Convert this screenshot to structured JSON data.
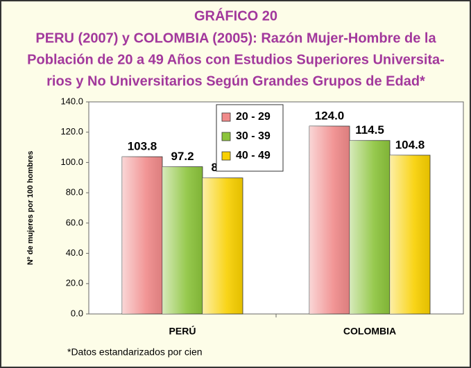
{
  "chart_data": {
    "type": "bar",
    "title": "GRÁFICO 20",
    "subtitle": [
      "PERU (2007) y COLOMBIA (2005): Razón Mujer-Hombre de la",
      "Población de 20 a 49 Años con Estudios Superiores Universita-",
      "rios y No Universitarios Según Grandes Grupos de Edad*"
    ],
    "y_label": "Nº de mujeres por 100 hombres",
    "footnote": "*Datos estandarizados por cien",
    "categories": [
      "PERÚ",
      "COLOMBIA"
    ],
    "series": [
      {
        "name": "20 - 29",
        "color": "#f08a8a",
        "values": [
          103.8,
          124
        ],
        "value_labels": [
          "103.8",
          "124.0"
        ]
      },
      {
        "name": "30 - 39",
        "color": "#8cc43c",
        "values": [
          97.2,
          114.5
        ],
        "value_labels": [
          "97.2",
          "114.5"
        ]
      },
      {
        "name": "40 - 49",
        "color": "#f8d000",
        "values": [
          89.8,
          104.8
        ],
        "value_labels": [
          "89.8",
          "104.8"
        ]
      }
    ],
    "ylim": [
      0,
      140
    ],
    "yticks": [
      {
        "value": 0,
        "label": "0.0"
      },
      {
        "value": 20,
        "label": "20.0"
      },
      {
        "value": 40,
        "label": "40.0"
      },
      {
        "value": 60,
        "label": "60.0"
      },
      {
        "value": 80,
        "label": "80.0"
      },
      {
        "value": 100,
        "label": "100.0"
      },
      {
        "value": 120,
        "label": "120.0"
      },
      {
        "value": 140,
        "label": "140.0"
      }
    ],
    "grid": false
  }
}
